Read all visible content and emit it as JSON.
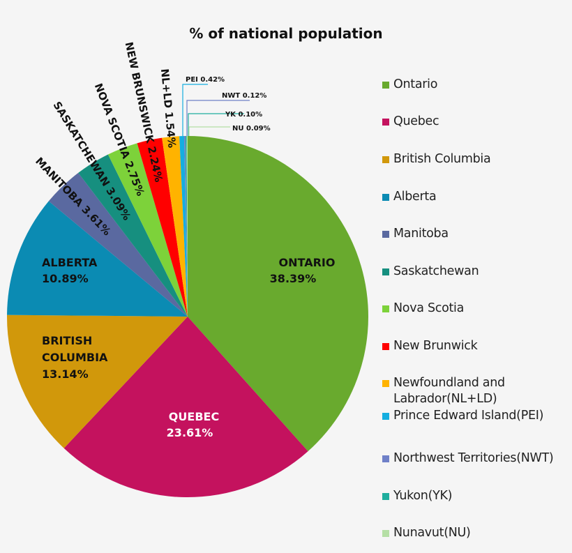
{
  "chart_data": {
    "type": "pie",
    "title": "% of national population",
    "legend_position": "right",
    "slices": [
      {
        "legend": "Ontario",
        "label": "ONTARIO",
        "value": 38.39,
        "display": "38.39%",
        "color": "#69aa2e",
        "label_style": "inside"
      },
      {
        "legend": "Quebec",
        "label": "QUEBEC",
        "value": 23.61,
        "display": "23.61%",
        "color": "#c4125e",
        "label_style": "inside"
      },
      {
        "legend": "British Columbia",
        "label": "BRITISH COLUMBIA",
        "value": 13.14,
        "display": "13.14%",
        "color": "#d1980b",
        "label_style": "inside"
      },
      {
        "legend": "Alberta",
        "label": "ALBERTA",
        "value": 10.89,
        "display": "10.89%",
        "color": "#0b8bb3",
        "label_style": "inside"
      },
      {
        "legend": "Manitoba",
        "label": "MANITOBA",
        "value": 3.61,
        "display": "3.61%",
        "color": "#5a69a0",
        "label_style": "radial"
      },
      {
        "legend": "Saskatchewan",
        "label": "SASKATCHEWAN",
        "value": 3.09,
        "display": "3.09%",
        "color": "#168f7f",
        "label_style": "radial"
      },
      {
        "legend": "Nova Scotia",
        "label": "NOVA SCOTIA",
        "value": 2.75,
        "display": "2.75%",
        "color": "#7dd23a",
        "label_style": "radial"
      },
      {
        "legend": "New Brunwick",
        "label": "NEW BRUNSWICK",
        "value": 2.24,
        "display": "2.24%",
        "color": "#ff0000",
        "label_style": "radial"
      },
      {
        "legend": "Newfoundland and Labrador(NL+LD)",
        "legend_lines": [
          "Newfoundland and",
          "Labrador(NL+LD)"
        ],
        "label": "NL+LD",
        "value": 1.54,
        "display": "1.54%",
        "color": "#ffb300",
        "label_style": "radial"
      },
      {
        "legend": "Prince Edward Island(PEI)",
        "label": "PEI",
        "value": 0.42,
        "display": "0.42%",
        "color": "#15aee0",
        "label_style": "leader"
      },
      {
        "legend": "Northwest Territories(NWT)",
        "label": "NWT",
        "value": 0.12,
        "display": "0.12%",
        "color": "#6f80c8",
        "label_style": "leader"
      },
      {
        "legend": "Yukon(YK)",
        "label": "YK",
        "value": 0.1,
        "display": "0.10%",
        "color": "#1fae9e",
        "label_style": "leader"
      },
      {
        "legend": "Nunavut(NU)",
        "label": "NU",
        "value": 0.09,
        "display": "0.09%",
        "color": "#b5dfa5",
        "label_style": "leader"
      }
    ]
  }
}
